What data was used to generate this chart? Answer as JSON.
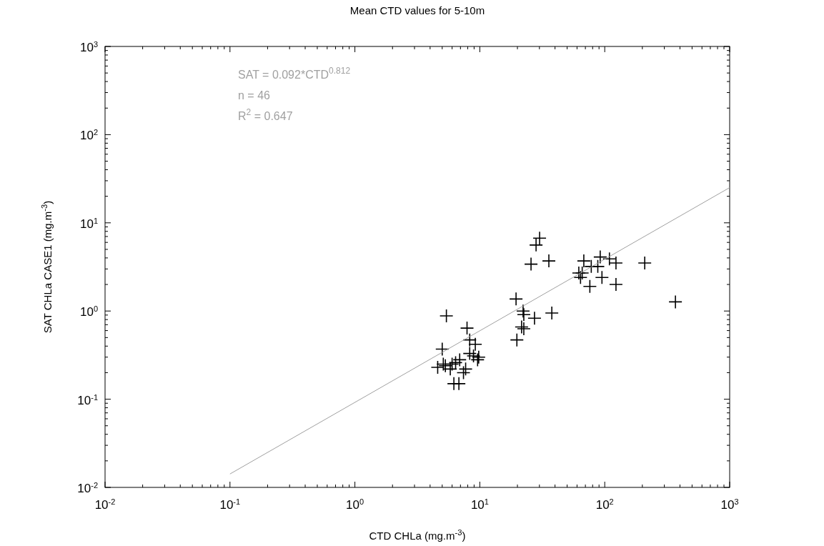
{
  "chart_data": {
    "type": "scatter",
    "title": "Mean CTD values for 5-10m",
    "xlabel": "CTD CHLa (mg.m$^{-3}$)",
    "ylabel": "SAT CHLa CASE1 (mg.m$^{-3}$)",
    "log": "xy",
    "grid": false,
    "xlim": [
      0.01,
      1000
    ],
    "ylim": [
      0.01,
      1000
    ],
    "xticks": [
      {
        "value": 0.01,
        "label": "10$^{-2}$"
      },
      {
        "value": 0.1,
        "label": "10$^{-1}$"
      },
      {
        "value": 1,
        "label": "10$^{0}$"
      },
      {
        "value": 10,
        "label": "10$^{1}$"
      },
      {
        "value": 100,
        "label": "10$^{2}$"
      },
      {
        "value": 1000,
        "label": "10$^{3}$"
      }
    ],
    "yticks": [
      {
        "value": 0.01,
        "label": "10$^{-2}$"
      },
      {
        "value": 0.1,
        "label": "10$^{-1}$"
      },
      {
        "value": 1,
        "label": "10$^{0}$"
      },
      {
        "value": 10,
        "label": "10$^{1}$"
      },
      {
        "value": 100,
        "label": "10$^{2}$"
      },
      {
        "value": 1000,
        "label": "10$^{3}$"
      }
    ],
    "annotations": [
      "SAT = 0.092*CTD$^{0.812}$",
      "n = 46",
      "R$^{2}$ = 0.647"
    ],
    "series": [
      {
        "marker": "cross",
        "color": "#000000",
        "x": [
          5.4,
          7.9,
          8.3,
          9.2,
          5.0,
          8.3,
          8.9,
          9.8,
          6.9,
          9.6,
          5.1,
          5.3,
          6.0,
          6.4,
          5.8,
          7.4,
          7.7,
          6.2,
          6.8,
          19.5,
          22.2,
          22.5,
          21.6,
          22.5,
          19.8,
          30.1,
          28.2,
          25.7,
          35.7,
          68,
          92,
          109,
          123,
          88,
          78,
          62,
          66,
          64,
          95,
          76,
          123,
          37.7,
          27.4,
          209,
          368,
          4.6
        ],
        "values": [
          0.88,
          0.64,
          0.47,
          0.42,
          0.37,
          0.33,
          0.31,
          0.3,
          0.28,
          0.28,
          0.25,
          0.24,
          0.25,
          0.26,
          0.22,
          0.2,
          0.22,
          0.15,
          0.15,
          1.37,
          1.0,
          0.91,
          0.66,
          0.63,
          0.47,
          6.7,
          5.6,
          3.4,
          3.7,
          3.7,
          4.1,
          3.9,
          3.5,
          3.2,
          3.2,
          2.7,
          2.7,
          2.4,
          2.4,
          1.9,
          2.0,
          0.95,
          0.83,
          3.5,
          1.27,
          0.23
        ]
      },
      {
        "type": "line",
        "color": "#a0a0a0",
        "x": [
          0.1,
          1000
        ],
        "values": [
          0.0142,
          25.1
        ]
      }
    ]
  }
}
